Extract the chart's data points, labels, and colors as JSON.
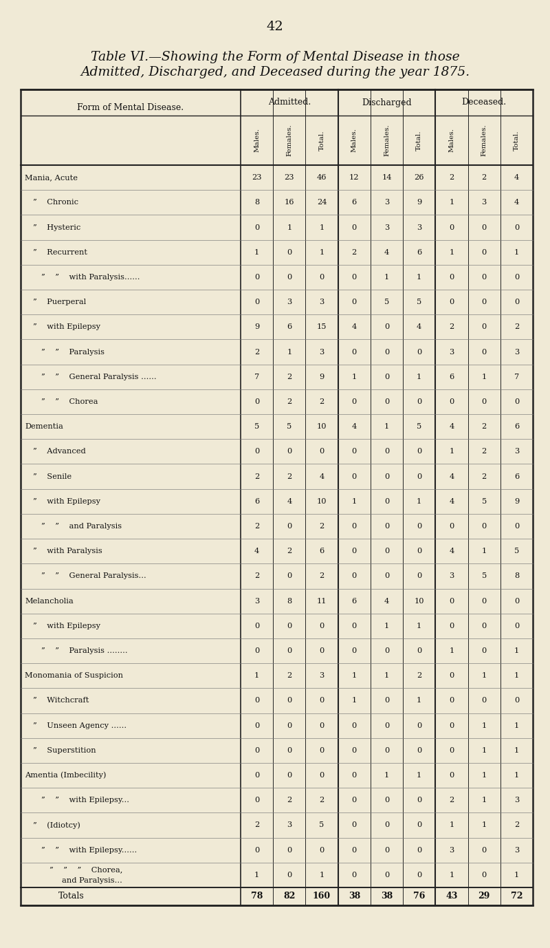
{
  "page_number": "42",
  "title_line1": "Table VI.—Showing the Form of Mental Disease in those",
  "title_line2": "Admitted, Discharged, and Deceased during the year 1875.",
  "col_groups": [
    "Admitted.",
    "Discharged",
    "Deceased."
  ],
  "sub_cols": [
    "Males.",
    "Females.",
    "Total."
  ],
  "row_label_col": "Form of Mental Disease.",
  "rows": [
    {
      "label": "Mania, Acute",
      "label2": null,
      "indent": 0,
      "vals": [
        23,
        23,
        46,
        12,
        14,
        26,
        2,
        2,
        4
      ]
    },
    {
      "label": "”    Chronic",
      "label2": null,
      "indent": 1,
      "vals": [
        8,
        16,
        24,
        6,
        3,
        9,
        1,
        3,
        4
      ]
    },
    {
      "label": "”    Hysteric",
      "label2": null,
      "indent": 1,
      "vals": [
        0,
        1,
        1,
        0,
        3,
        3,
        0,
        0,
        0
      ]
    },
    {
      "label": "”    Recurrent",
      "label2": null,
      "indent": 1,
      "vals": [
        1,
        0,
        1,
        2,
        4,
        6,
        1,
        0,
        1
      ]
    },
    {
      "label": "”    ”    with Paralysis......",
      "label2": null,
      "indent": 2,
      "vals": [
        0,
        0,
        0,
        0,
        1,
        1,
        0,
        0,
        0
      ]
    },
    {
      "label": "”    Puerperal",
      "label2": null,
      "indent": 1,
      "vals": [
        0,
        3,
        3,
        0,
        5,
        5,
        0,
        0,
        0
      ]
    },
    {
      "label": "”    with Epilepsy",
      "label2": null,
      "indent": 1,
      "vals": [
        9,
        6,
        15,
        4,
        0,
        4,
        2,
        0,
        2
      ]
    },
    {
      "label": "”    ”    Paralysis",
      "label2": null,
      "indent": 2,
      "vals": [
        2,
        1,
        3,
        0,
        0,
        0,
        3,
        0,
        3
      ]
    },
    {
      "label": "”    ”    General Paralysis ......",
      "label2": null,
      "indent": 2,
      "vals": [
        7,
        2,
        9,
        1,
        0,
        1,
        6,
        1,
        7
      ]
    },
    {
      "label": "”    ”    Chorea",
      "label2": null,
      "indent": 2,
      "vals": [
        0,
        2,
        2,
        0,
        0,
        0,
        0,
        0,
        0
      ]
    },
    {
      "label": "Dementia",
      "label2": null,
      "indent": 0,
      "vals": [
        5,
        5,
        10,
        4,
        1,
        5,
        4,
        2,
        6
      ]
    },
    {
      "label": "”    Advanced",
      "label2": null,
      "indent": 1,
      "vals": [
        0,
        0,
        0,
        0,
        0,
        0,
        1,
        2,
        3
      ]
    },
    {
      "label": "”    Senile",
      "label2": null,
      "indent": 1,
      "vals": [
        2,
        2,
        4,
        0,
        0,
        0,
        4,
        2,
        6
      ]
    },
    {
      "label": "”    with Epilepsy",
      "label2": null,
      "indent": 1,
      "vals": [
        6,
        4,
        10,
        1,
        0,
        1,
        4,
        5,
        9
      ]
    },
    {
      "label": "”    ”    and Paralysis",
      "label2": null,
      "indent": 2,
      "vals": [
        2,
        0,
        2,
        0,
        0,
        0,
        0,
        0,
        0
      ]
    },
    {
      "label": "”    with Paralysis",
      "label2": null,
      "indent": 1,
      "vals": [
        4,
        2,
        6,
        0,
        0,
        0,
        4,
        1,
        5
      ]
    },
    {
      "label": "”    ”    General Paralysis...",
      "label2": null,
      "indent": 2,
      "vals": [
        2,
        0,
        2,
        0,
        0,
        0,
        3,
        5,
        8
      ]
    },
    {
      "label": "Melancholia",
      "label2": null,
      "indent": 0,
      "vals": [
        3,
        8,
        11,
        6,
        4,
        10,
        0,
        0,
        0
      ]
    },
    {
      "label": "”    with Epilepsy",
      "label2": null,
      "indent": 1,
      "vals": [
        0,
        0,
        0,
        0,
        1,
        1,
        0,
        0,
        0
      ]
    },
    {
      "label": "”    ”    Paralysis ........",
      "label2": null,
      "indent": 2,
      "vals": [
        0,
        0,
        0,
        0,
        0,
        0,
        1,
        0,
        1
      ]
    },
    {
      "label": "Monomania of Suspicion",
      "label2": null,
      "indent": 0,
      "vals": [
        1,
        2,
        3,
        1,
        1,
        2,
        0,
        1,
        1
      ]
    },
    {
      "label": "”    Witchcraft",
      "label2": null,
      "indent": 1,
      "vals": [
        0,
        0,
        0,
        1,
        0,
        1,
        0,
        0,
        0
      ]
    },
    {
      "label": "”    Unseen Agency ......",
      "label2": null,
      "indent": 1,
      "vals": [
        0,
        0,
        0,
        0,
        0,
        0,
        0,
        1,
        1
      ]
    },
    {
      "label": "”    Superstition",
      "label2": null,
      "indent": 1,
      "vals": [
        0,
        0,
        0,
        0,
        0,
        0,
        0,
        1,
        1
      ]
    },
    {
      "label": "Amentia (Imbecility)",
      "label2": null,
      "indent": 0,
      "vals": [
        0,
        0,
        0,
        0,
        1,
        1,
        0,
        1,
        1
      ]
    },
    {
      "label": "”    ”    with Epilepsy...",
      "label2": null,
      "indent": 2,
      "vals": [
        0,
        2,
        2,
        0,
        0,
        0,
        2,
        1,
        3
      ]
    },
    {
      "label": "”    (Idiotcy)",
      "label2": null,
      "indent": 1,
      "vals": [
        2,
        3,
        5,
        0,
        0,
        0,
        1,
        1,
        2
      ]
    },
    {
      "label": "”    ”    with Epilepsy......",
      "label2": null,
      "indent": 2,
      "vals": [
        0,
        0,
        0,
        0,
        0,
        0,
        3,
        0,
        3
      ]
    },
    {
      "label": "”    ”    ”    Chorea,",
      "label2": "and Paralysis...",
      "indent": 3,
      "vals": [
        1,
        0,
        1,
        0,
        0,
        0,
        1,
        0,
        1
      ]
    }
  ],
  "totals_vals": [
    78,
    82,
    160,
    38,
    38,
    76,
    43,
    29,
    72
  ],
  "bg_color": "#f0ead6",
  "text_color": "#111111",
  "border_color": "#222222",
  "title_fs": 13.5,
  "header_fs": 9.0,
  "subheader_fs": 7.5,
  "data_fs": 8.2,
  "totals_fs": 9.0
}
